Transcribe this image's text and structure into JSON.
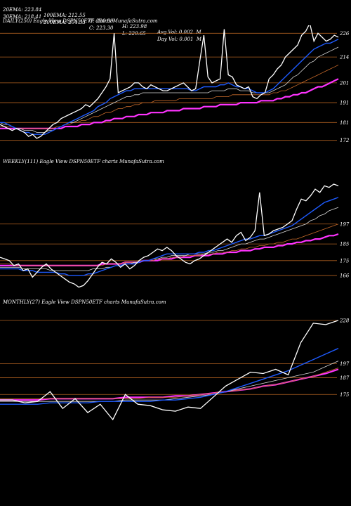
{
  "header": {
    "row1": [
      "20EMA: 223.84",
      "100EMA: 212.55",
      "C: 220.89",
      "H: 223.98",
      "Avg Vol: 0.002  M"
    ],
    "row2": [
      "30EMA: 218.41",
      "200EMA: 204.33",
      "C: 223.30",
      "L: 220.65",
      "Day Vol: 0.001  M"
    ]
  },
  "colors": {
    "background": "#000000",
    "price": "#ffffff",
    "ema_fast": "#1e5bff",
    "ema_long": "#ff33ff",
    "ema_mid": "#c86a2a",
    "level": "#b06020"
  },
  "chart_data": [
    {
      "type": "line",
      "title": "DAILY(250) Eagle  View  DSPN50ETF charts MunafaSutra.com",
      "yticks": [
        226,
        214,
        201,
        191,
        181,
        172
      ],
      "ylim": [
        168,
        230
      ],
      "price": [
        180,
        179,
        178,
        177,
        178,
        177,
        176,
        174,
        175,
        173,
        174,
        176,
        178,
        180,
        181,
        183,
        184,
        185,
        186,
        187,
        188,
        190,
        189,
        191,
        193,
        196,
        199,
        203,
        226,
        196,
        197,
        198,
        199,
        201,
        201,
        199,
        198,
        200,
        199,
        198,
        197,
        197,
        198,
        199,
        200,
        201,
        199,
        197,
        198,
        212,
        225,
        204,
        201,
        202,
        203,
        228,
        205,
        204,
        200,
        199,
        198,
        199,
        194,
        193,
        195,
        196,
        203,
        205,
        208,
        210,
        214,
        216,
        218,
        220,
        225,
        227,
        231,
        222,
        226,
        224,
        222,
        223,
        225,
        224
      ],
      "series": [
        {
          "values": [
            181,
            181,
            180,
            179,
            178,
            177,
            176,
            176,
            175,
            175,
            175,
            175,
            176,
            177,
            178,
            179,
            180,
            181,
            182,
            183,
            184,
            185,
            186,
            187,
            189,
            190,
            191,
            193,
            194,
            195,
            196,
            197,
            197,
            198,
            198,
            198,
            198,
            198,
            198,
            198,
            198,
            198,
            198,
            198,
            198,
            198,
            198,
            197,
            197,
            198,
            199,
            199,
            199,
            199,
            200,
            200,
            201,
            200,
            199,
            199,
            198,
            198,
            197,
            196,
            196,
            196,
            197,
            198,
            200,
            202,
            204,
            206,
            208,
            210,
            212,
            214,
            216,
            218,
            219,
            220,
            221,
            221,
            222,
            223
          ]
        },
        {
          "values": [
            181,
            180,
            180,
            179,
            178,
            178,
            177,
            177,
            177,
            176,
            176,
            176,
            177,
            177,
            178,
            179,
            180,
            181,
            181,
            182,
            183,
            184,
            185,
            186,
            187,
            188,
            189,
            190,
            191,
            192,
            193,
            194,
            194,
            195,
            195,
            196,
            196,
            196,
            196,
            196,
            196,
            196,
            196,
            196,
            196,
            196,
            196,
            196,
            196,
            196,
            196,
            196,
            197,
            197,
            197,
            197,
            198,
            198,
            198,
            197,
            197,
            197,
            196,
            196,
            196,
            196,
            196,
            197,
            198,
            199,
            200,
            202,
            204,
            205,
            207,
            209,
            211,
            212,
            214,
            215,
            216,
            217,
            218,
            219
          ]
        },
        {
          "values": [
            179,
            179,
            179,
            179,
            178,
            178,
            178,
            178,
            178,
            178,
            178,
            178,
            178,
            178,
            179,
            179,
            180,
            180,
            181,
            181,
            182,
            182,
            183,
            184,
            184,
            185,
            186,
            186,
            187,
            188,
            188,
            189,
            189,
            190,
            190,
            191,
            191,
            191,
            192,
            192,
            192,
            192,
            192,
            192,
            193,
            193,
            193,
            193,
            193,
            193,
            193,
            193,
            193,
            194,
            194,
            194,
            194,
            195,
            195,
            195,
            195,
            195,
            195,
            195,
            195,
            195,
            195,
            196,
            196,
            197,
            197,
            198,
            199,
            200,
            201,
            202,
            203,
            204,
            205,
            206,
            207,
            208,
            209,
            210
          ]
        },
        {
          "values": [
            178,
            178,
            178,
            178,
            178,
            178,
            178,
            178,
            178,
            178,
            178,
            178,
            178,
            178,
            178,
            178,
            179,
            179,
            179,
            179,
            180,
            180,
            180,
            181,
            181,
            181,
            182,
            182,
            183,
            183,
            183,
            184,
            184,
            184,
            185,
            185,
            185,
            186,
            186,
            186,
            186,
            187,
            187,
            187,
            187,
            188,
            188,
            188,
            188,
            188,
            189,
            189,
            189,
            189,
            190,
            190,
            190,
            190,
            190,
            191,
            191,
            191,
            191,
            191,
            192,
            192,
            192,
            192,
            193,
            193,
            194,
            194,
            195,
            195,
            196,
            196,
            197,
            198,
            199,
            199,
            200,
            201,
            202,
            203
          ]
        }
      ]
    },
    {
      "type": "line",
      "title": "WEEKLY(111) Eagle  View  DSPN50ETF charts MunafaSutra.com",
      "yticks": [
        197,
        185,
        175,
        166
      ],
      "ylim": [
        158,
        232
      ],
      "price": [
        177,
        176,
        175,
        172,
        173,
        169,
        170,
        165,
        168,
        171,
        173,
        170,
        168,
        166,
        164,
        162,
        161,
        159,
        160,
        163,
        167,
        171,
        174,
        173,
        176,
        174,
        171,
        173,
        170,
        172,
        175,
        177,
        178,
        180,
        182,
        181,
        183,
        181,
        178,
        176,
        174,
        173,
        175,
        176,
        178,
        180,
        182,
        184,
        186,
        188,
        186,
        190,
        192,
        187,
        189,
        193,
        216,
        190,
        191,
        193,
        194,
        195,
        197,
        199,
        206,
        212,
        211,
        214,
        218,
        216,
        220,
        219,
        221,
        220
      ],
      "series": [
        {
          "values": [
            170,
            170,
            170,
            170,
            170,
            169,
            169,
            169,
            168,
            168,
            168,
            168,
            168,
            167,
            167,
            166,
            166,
            166,
            166,
            167,
            167,
            168,
            169,
            170,
            171,
            172,
            172,
            173,
            173,
            173,
            174,
            175,
            175,
            176,
            177,
            178,
            179,
            179,
            179,
            179,
            179,
            179,
            179,
            180,
            180,
            181,
            181,
            182,
            183,
            184,
            185,
            186,
            187,
            188,
            188,
            189,
            190,
            190,
            191,
            192,
            193,
            194,
            195,
            196,
            198,
            200,
            202,
            204,
            206,
            208,
            210,
            211,
            212,
            213
          ]
        },
        {
          "values": [
            171,
            171,
            171,
            171,
            171,
            170,
            170,
            170,
            170,
            170,
            170,
            169,
            169,
            169,
            169,
            169,
            169,
            169,
            169,
            169,
            170,
            170,
            170,
            171,
            171,
            172,
            172,
            173,
            173,
            174,
            174,
            175,
            175,
            176,
            176,
            177,
            177,
            178,
            178,
            178,
            178,
            179,
            179,
            179,
            179,
            180,
            180,
            181,
            181,
            182,
            183,
            184,
            185,
            185,
            186,
            187,
            188,
            188,
            189,
            190,
            191,
            192,
            193,
            194,
            195,
            196,
            197,
            199,
            200,
            202,
            203,
            205,
            206,
            207
          ]
        },
        {
          "values": [
            173,
            173,
            173,
            172,
            172,
            172,
            172,
            172,
            172,
            172,
            172,
            172,
            172,
            172,
            172,
            172,
            172,
            172,
            172,
            172,
            172,
            172,
            172,
            173,
            173,
            173,
            173,
            174,
            174,
            174,
            174,
            175,
            175,
            175,
            176,
            176,
            176,
            177,
            177,
            177,
            178,
            178,
            178,
            178,
            179,
            179,
            179,
            180,
            180,
            180,
            181,
            181,
            182,
            182,
            183,
            183,
            184,
            184,
            185,
            185,
            186,
            186,
            187,
            188,
            188,
            189,
            190,
            191,
            192,
            193,
            194,
            195,
            196,
            197
          ]
        },
        {
          "values": [
            172,
            172,
            172,
            172,
            172,
            172,
            172,
            172,
            172,
            172,
            172,
            172,
            172,
            172,
            172,
            172,
            172,
            172,
            172,
            172,
            172,
            172,
            173,
            173,
            173,
            173,
            173,
            174,
            174,
            174,
            174,
            175,
            175,
            175,
            175,
            176,
            176,
            176,
            177,
            177,
            177,
            177,
            178,
            178,
            178,
            178,
            179,
            179,
            179,
            180,
            180,
            180,
            181,
            181,
            181,
            182,
            182,
            183,
            183,
            183,
            184,
            184,
            185,
            185,
            186,
            186,
            187,
            187,
            188,
            188,
            189,
            190,
            190,
            191
          ]
        }
      ]
    },
    {
      "type": "line",
      "title": "MONTHLY(27) Eagle  View  DSPN50ETF charts MunafaSutra.com",
      "yticks": [
        228,
        197,
        187,
        175
      ],
      "ylim": [
        150,
        238
      ],
      "price": [
        171,
        171,
        169,
        170,
        177,
        165,
        172,
        162,
        168,
        157,
        175,
        168,
        167,
        164,
        163,
        166,
        165,
        173,
        181,
        186,
        191,
        190,
        193,
        189,
        212,
        226,
        225,
        228
      ],
      "series": [
        {
          "values": [
            168,
            168,
            168,
            168,
            169,
            169,
            169,
            169,
            170,
            170,
            170,
            170,
            170,
            171,
            171,
            172,
            173,
            175,
            177,
            180,
            183,
            186,
            189,
            192,
            196,
            200,
            204,
            208
          ]
        },
        {
          "values": [
            170,
            170,
            170,
            170,
            170,
            170,
            170,
            170,
            170,
            170,
            171,
            171,
            171,
            171,
            172,
            173,
            174,
            175,
            177,
            179,
            181,
            183,
            185,
            187,
            189,
            191,
            195,
            199
          ]
        },
        {
          "values": [
            172,
            172,
            172,
            172,
            172,
            172,
            172,
            172,
            172,
            172,
            172,
            172,
            173,
            173,
            173,
            174,
            175,
            176,
            177,
            178,
            179,
            181,
            182,
            184,
            186,
            188,
            191,
            194
          ]
        },
        {
          "values": [
            171,
            171,
            171,
            171,
            172,
            172,
            172,
            172,
            172,
            172,
            173,
            173,
            173,
            173,
            174,
            174,
            175,
            176,
            177,
            178,
            179,
            181,
            182,
            184,
            186,
            188,
            190,
            193
          ]
        }
      ]
    }
  ]
}
